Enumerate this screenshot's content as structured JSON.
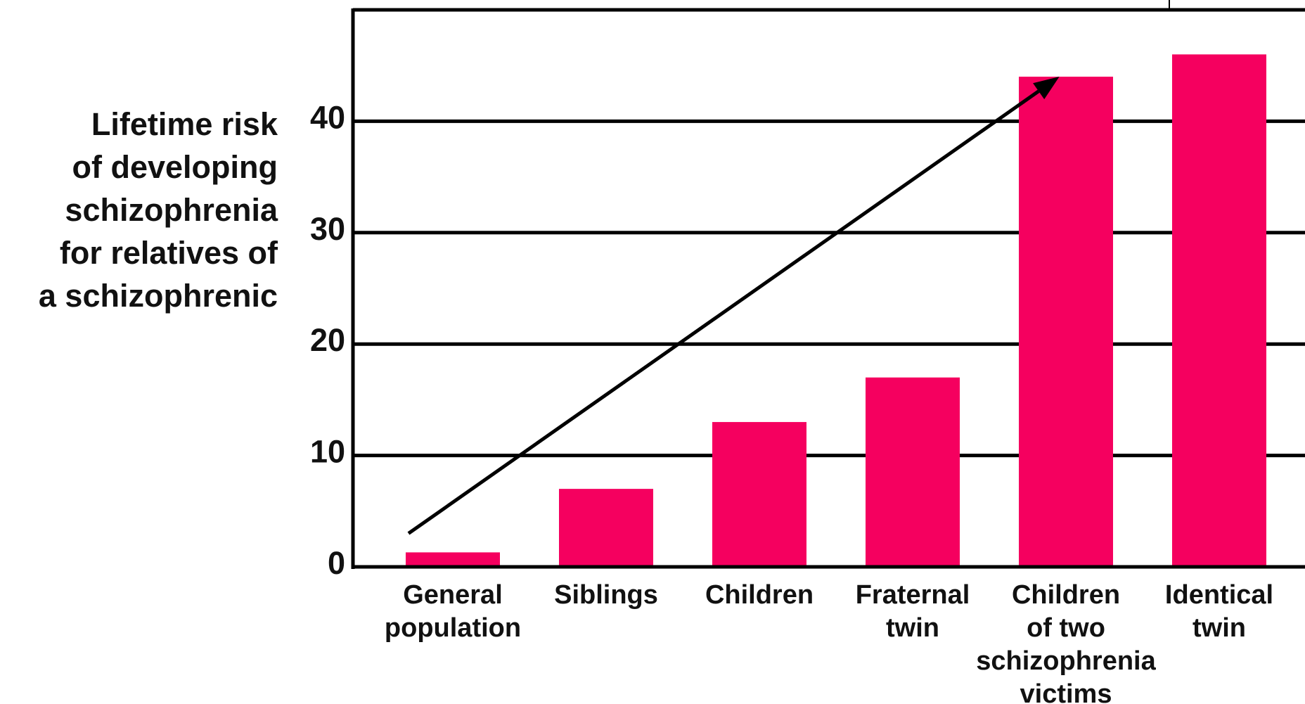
{
  "chart_data": {
    "type": "bar",
    "title": "",
    "xlabel": "",
    "ylabel_lines": [
      "Lifetime risk",
      "of developing",
      "schizophrenia",
      "for relatives of",
      "a schizophrenic"
    ],
    "categories": [
      [
        "General",
        "population"
      ],
      [
        "Siblings"
      ],
      [
        "Children"
      ],
      [
        "Fraternal",
        "twin"
      ],
      [
        "Children",
        "of two",
        "schizophrenia",
        "victims"
      ],
      [
        "Identical",
        "twin"
      ]
    ],
    "values": [
      1.3,
      7,
      13,
      17,
      44,
      46
    ],
    "ylim": [
      0,
      50
    ],
    "yticks": [
      0,
      10,
      20,
      30,
      40
    ],
    "grid": true,
    "legend": "none",
    "annotation": "upward trend arrow",
    "arrow": {
      "from": [
        0,
        3
      ],
      "to": [
        4.2,
        44
      ]
    },
    "colors": {
      "bar": "#f5005f",
      "axis": "#000000",
      "text": "#111111"
    }
  }
}
